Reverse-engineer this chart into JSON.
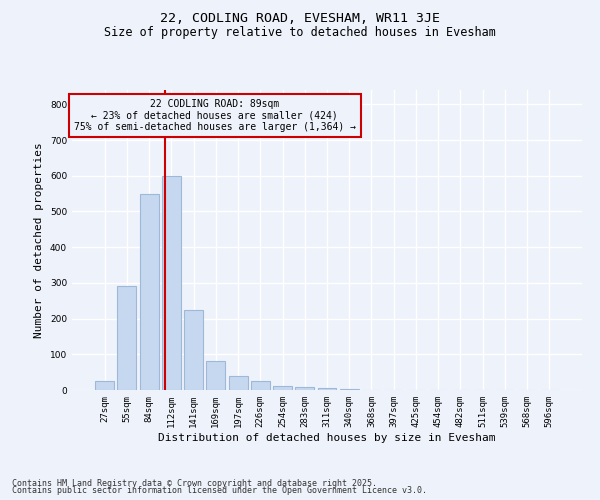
{
  "title1": "22, CODLING ROAD, EVESHAM, WR11 3JE",
  "title2": "Size of property relative to detached houses in Evesham",
  "xlabel": "Distribution of detached houses by size in Evesham",
  "ylabel": "Number of detached properties",
  "footer1": "Contains HM Land Registry data © Crown copyright and database right 2025.",
  "footer2": "Contains public sector information licensed under the Open Government Licence v3.0.",
  "categories": [
    "27sqm",
    "55sqm",
    "84sqm",
    "112sqm",
    "141sqm",
    "169sqm",
    "197sqm",
    "226sqm",
    "254sqm",
    "283sqm",
    "311sqm",
    "340sqm",
    "368sqm",
    "397sqm",
    "425sqm",
    "454sqm",
    "482sqm",
    "511sqm",
    "539sqm",
    "568sqm",
    "596sqm"
  ],
  "values": [
    25,
    290,
    548,
    600,
    225,
    80,
    38,
    25,
    10,
    8,
    5,
    3,
    0,
    0,
    0,
    0,
    0,
    0,
    0,
    0,
    0
  ],
  "bar_color": "#c5d8f0",
  "bar_edgecolor": "#a0b8d8",
  "bar_linewidth": 0.8,
  "vline_x": 2.72,
  "vline_color": "#cc0000",
  "annotation_text": "22 CODLING ROAD: 89sqm\n← 23% of detached houses are smaller (424)\n75% of semi-detached houses are larger (1,364) →",
  "annotation_box_color": "#cc0000",
  "ylim": [
    0,
    840
  ],
  "yticks": [
    0,
    100,
    200,
    300,
    400,
    500,
    600,
    700,
    800
  ],
  "bg_color": "#eef2fb",
  "grid_color": "#ffffff",
  "title_fontsize": 9.5,
  "subtitle_fontsize": 8.5,
  "tick_fontsize": 6.5,
  "label_fontsize": 8,
  "footer_fontsize": 6,
  "ann_fontsize": 7
}
